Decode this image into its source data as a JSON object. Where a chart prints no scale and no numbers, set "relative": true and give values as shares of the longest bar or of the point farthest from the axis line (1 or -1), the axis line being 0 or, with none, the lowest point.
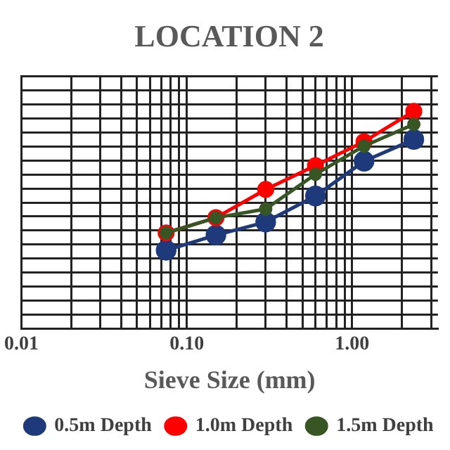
{
  "chart_data": {
    "type": "line",
    "title": "LOCATION 2",
    "xlabel": "Sieve Size (mm)",
    "relative": true,
    "log": "x",
    "xlim": [
      0.01,
      3.3
    ],
    "xticks": [
      {
        "value": 0.01,
        "label": "0.01"
      },
      {
        "value": 0.1,
        "label": "0.10"
      },
      {
        "value": 1,
        "label": "1.00"
      }
    ],
    "grid": true,
    "legend": "bottom",
    "marker": "circle",
    "line_style": "solid",
    "series": [
      {
        "name": "0.5m Depth",
        "color": "#1f3a7a",
        "x": [
          0.075,
          0.15,
          0.3,
          0.6,
          1.18,
          2.36
        ],
        "values": [
          0.36,
          0.43,
          0.49,
          0.61,
          0.77,
          0.87
        ]
      },
      {
        "name": "1.0m Depth",
        "color": "#ff0000",
        "x": [
          0.075,
          0.15,
          0.3,
          0.6,
          1.18,
          2.36
        ],
        "values": [
          0.44,
          0.51,
          0.64,
          0.75,
          0.86,
          1
        ]
      },
      {
        "name": "1.5m Depth",
        "color": "#375623",
        "x": [
          0.075,
          0.15,
          0.3,
          0.6,
          1.18,
          2.36
        ],
        "values": [
          0.44,
          0.51,
          0.55,
          0.71,
          0.84,
          0.94
        ]
      }
    ]
  }
}
